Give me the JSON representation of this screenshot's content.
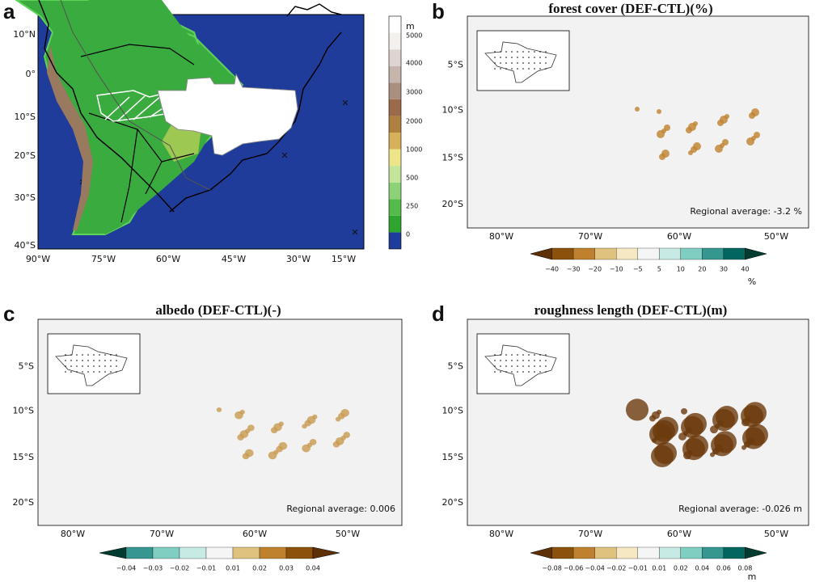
{
  "panels": [
    {
      "letter": "a",
      "x_labels": [
        "90°W",
        "75°W",
        "60°W",
        "45°W",
        "30°W",
        "15°W"
      ],
      "y_labels": [
        "10°N",
        "0°",
        "10°S",
        "20°S",
        "30°S",
        "40°S"
      ],
      "colorbar": {
        "unit": "m",
        "labels": [
          "0",
          "250",
          "500",
          "1000",
          "2000",
          "3000",
          "4000",
          "5000"
        ]
      }
    },
    {
      "letter": "b",
      "title": "forest cover (DEF-CTL)(%)",
      "annotation": "Regional average: -3.2 %",
      "x_labels": [
        "80°W",
        "70°W",
        "60°W",
        "50°W"
      ],
      "y_labels": [
        "5°S",
        "10°S",
        "15°S",
        "20°S"
      ],
      "colorbar": {
        "unit": "%",
        "labels": [
          "−40",
          "−30",
          "−20",
          "−10",
          "−5",
          "5",
          "10",
          "20",
          "30",
          "40"
        ]
      }
    },
    {
      "letter": "c",
      "title": "albedo (DEF-CTL)(-)",
      "annotation": "Regional average: 0.006",
      "x_labels": [
        "80°W",
        "70°W",
        "60°W",
        "50°W"
      ],
      "y_labels": [
        "5°S",
        "10°S",
        "15°S",
        "20°S"
      ],
      "colorbar": {
        "labels": [
          "−0.04",
          "−0.03",
          "−0.02",
          "−0.01",
          "0.01",
          "0.02",
          "0.03",
          "0.04"
        ]
      }
    },
    {
      "letter": "d",
      "title": "roughness length (DEF-CTL)(m)",
      "annotation": "Regional average: -0.026 m",
      "x_labels": [
        "80°W",
        "70°W",
        "60°W",
        "50°W"
      ],
      "y_labels": [
        "5°S",
        "10°S",
        "15°S",
        "20°S"
      ],
      "colorbar": {
        "unit": "m",
        "labels": [
          "−0.08",
          "−0.06",
          "−0.04",
          "−0.02",
          "−0.01",
          "0.01",
          "0.02",
          "0.04",
          "0.06",
          "0.08"
        ]
      }
    }
  ]
}
